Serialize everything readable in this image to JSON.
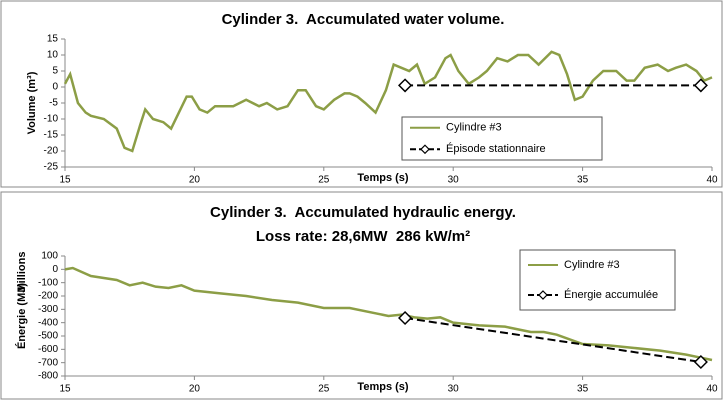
{
  "chart_data": [
    {
      "type": "line",
      "title": "Cylinder 3.  Accumulated water volume.",
      "x_label": "Temps (s)",
      "y_label": "Volume (m³)",
      "xlim": [
        15,
        40
      ],
      "xticks": [
        15,
        20,
        25,
        30,
        35,
        40
      ],
      "ylim": [
        -25,
        15
      ],
      "yticks": [
        15,
        10,
        5,
        0,
        -5,
        -10,
        -15,
        -20,
        -25
      ],
      "grid": false,
      "legend": "center",
      "series": [
        {
          "name": "Cylindre #3",
          "color": "#8c9e46",
          "x": [
            15,
            15.2,
            15.5,
            15.8,
            16,
            16.5,
            17,
            17.3,
            17.6,
            17.9,
            18.1,
            18.4,
            18.8,
            19.1,
            19.4,
            19.7,
            19.9,
            20.2,
            20.5,
            20.8,
            21,
            21.5,
            22,
            22.5,
            22.8,
            23.2,
            23.6,
            24,
            24.3,
            24.7,
            25,
            25.4,
            25.8,
            26,
            26.3,
            26.6,
            27,
            27.4,
            27.7,
            28,
            28.3,
            28.6,
            28.9,
            29.3,
            29.7,
            29.9,
            30.2,
            30.6,
            31,
            31.3,
            31.7,
            32.1,
            32.5,
            32.9,
            33.3,
            33.8,
            34.1,
            34.4,
            34.7,
            35,
            35.4,
            35.8,
            36.3,
            36.7,
            37,
            37.4,
            37.9,
            38.3,
            38.6,
            39,
            39.4,
            39.7,
            40
          ],
          "values": [
            1,
            4,
            -5,
            -8,
            -9,
            -10,
            -13,
            -19,
            -20,
            -12,
            -7,
            -10,
            -11,
            -13,
            -8,
            -3,
            -3,
            -7,
            -8,
            -6,
            -6,
            -6,
            -4,
            -6,
            -5,
            -7,
            -6,
            -1,
            -1,
            -6,
            -7,
            -4,
            -2,
            -2,
            -3,
            -5,
            -8,
            -1,
            7,
            6,
            5,
            7,
            1,
            3,
            9,
            10,
            5,
            1,
            3,
            5,
            9,
            8,
            10,
            10,
            7,
            11,
            10,
            4,
            -4,
            -3,
            2,
            5,
            5,
            2,
            2,
            6,
            7,
            5,
            6,
            7,
            5,
            2,
            3
          ]
        },
        {
          "name": "Épisode stationnaire",
          "color": "#000000",
          "dashed": true,
          "marker": "diamond",
          "x": [
            28.14,
            39.57
          ],
          "values": [
            0.5,
            0.5
          ]
        }
      ]
    },
    {
      "type": "line",
      "title": "Cylinder 3.  Accumulated hydraulic energy.",
      "subtitle": "Loss rate: 28,6MW  286 kW/m²",
      "x_label": "Temps (s)",
      "y_label": "Énergie (MJ)",
      "display_unit": "Millions",
      "xlim": [
        15,
        40
      ],
      "xticks": [
        15,
        20,
        25,
        30,
        35,
        40
      ],
      "ylim": [
        -800,
        100
      ],
      "yticks": [
        100,
        0,
        -100,
        -200,
        -300,
        -400,
        -500,
        -600,
        -700,
        -800
      ],
      "grid": false,
      "legend": "upper right",
      "series": [
        {
          "name": "Cylindre #3",
          "color": "#8c9e46",
          "x": [
            15,
            15.3,
            16,
            17,
            17.5,
            18,
            18.5,
            19,
            19.5,
            20,
            21,
            22,
            23,
            24,
            25,
            26,
            27,
            27.5,
            28,
            28.5,
            29,
            29.5,
            30,
            31,
            32,
            33,
            33.5,
            34,
            35,
            36,
            37,
            38,
            39,
            39.5,
            40
          ],
          "values": [
            0,
            10,
            -50,
            -80,
            -120,
            -100,
            -130,
            -140,
            -120,
            -160,
            -180,
            -200,
            -230,
            -250,
            -290,
            -290,
            -330,
            -350,
            -340,
            -360,
            -370,
            -360,
            -400,
            -420,
            -430,
            -470,
            -470,
            -490,
            -560,
            -570,
            -590,
            -610,
            -640,
            -660,
            -680
          ]
        },
        {
          "name": "Énergie accumulée",
          "color": "#000000",
          "dashed": true,
          "marker": "diamond",
          "x": [
            28.14,
            39.57
          ],
          "values": [
            -365,
            -695
          ]
        }
      ]
    }
  ]
}
